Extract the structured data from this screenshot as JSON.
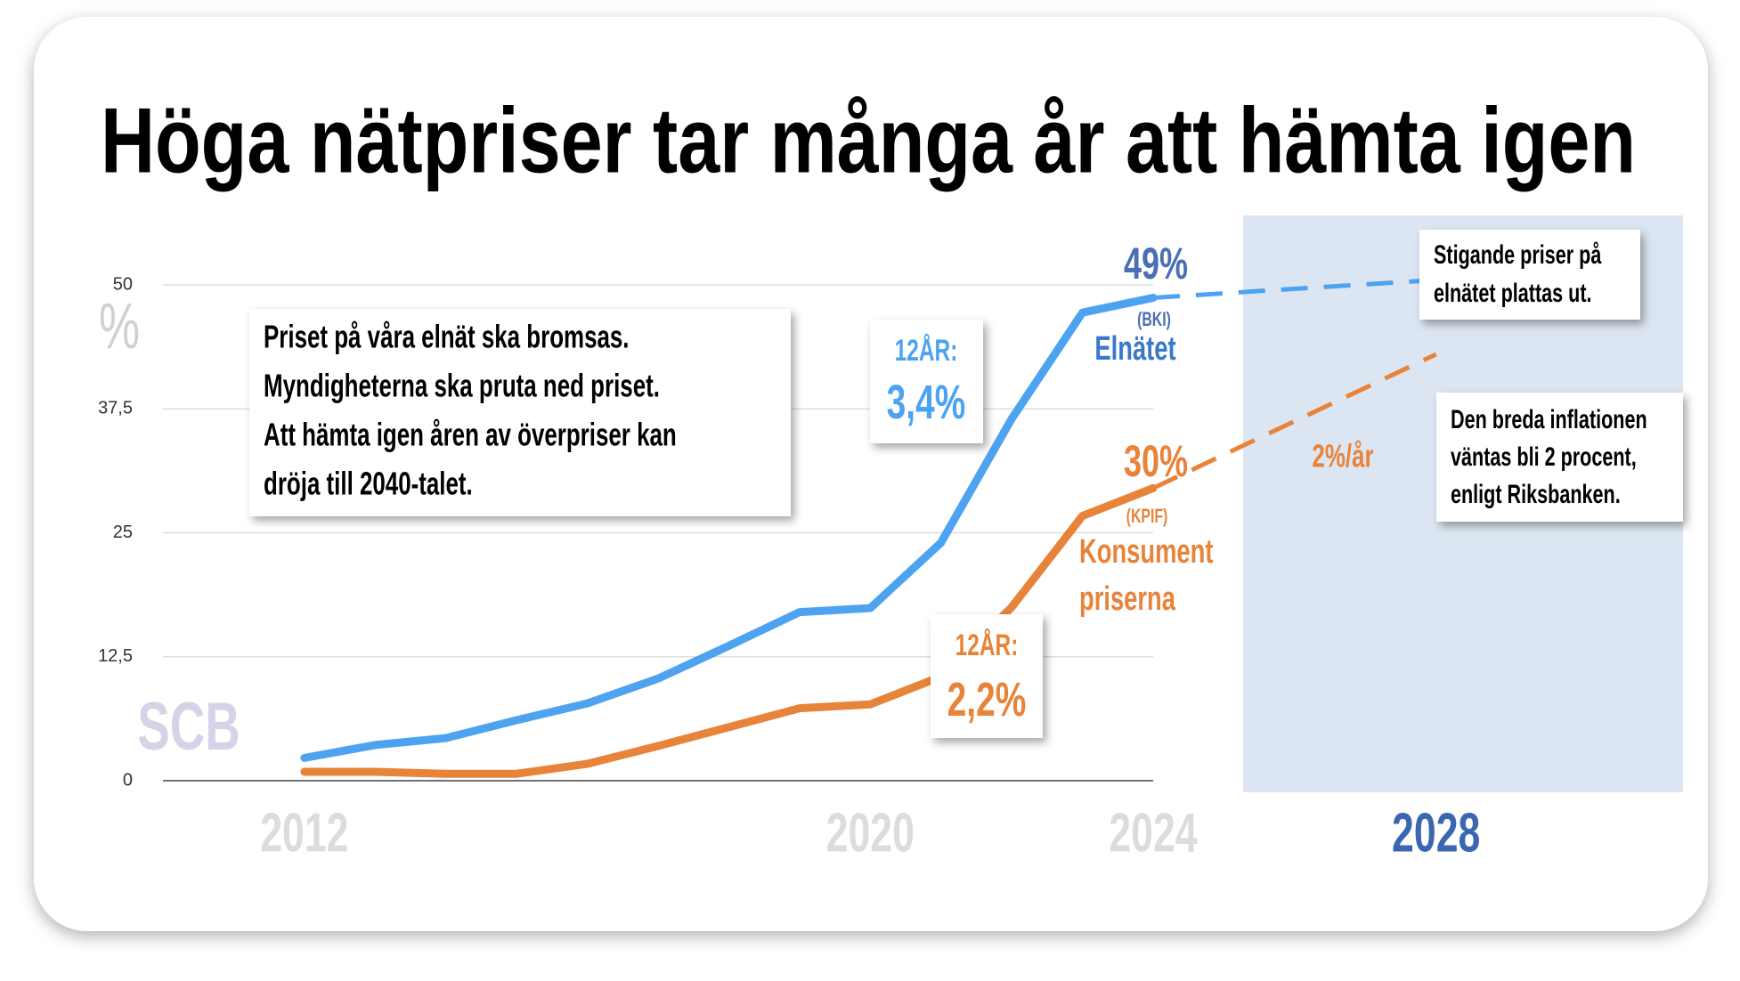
{
  "chart_data": {
    "type": "line",
    "title": "Höga nätpriser tar många år att hämta igen",
    "y_unit": "%",
    "watermark": "SCB",
    "x": [
      2012,
      2013,
      2014,
      2015,
      2016,
      2017,
      2018,
      2019,
      2020,
      2021,
      2022,
      2023,
      2024
    ],
    "xlim": [
      2010,
      2024
    ],
    "xticks": [
      2012,
      2020,
      2024,
      2028
    ],
    "xtick_colors": [
      "#dcdcdc",
      "#dcdcdc",
      "#dcdcdc",
      "#3b67b0"
    ],
    "ylim": [
      0,
      50
    ],
    "yticks": [
      0,
      {
        "value": 12.5,
        "label": "12,5"
      },
      25,
      {
        "value": 37.5,
        "label": "37,5"
      },
      50
    ],
    "grid": true,
    "series": [
      {
        "color": "#4da3f0",
        "values": [
          2.3,
          3.6,
          4.3,
          6.1,
          7.8,
          10.3,
          13.6,
          17.0,
          17.4,
          24.0,
          36.5,
          47.2,
          48.7
        ]
      },
      {
        "color": "#e8833a",
        "values": [
          0.9,
          0.9,
          0.7,
          0.7,
          1.7,
          3.5,
          5.4,
          7.3,
          7.7,
          10.5,
          17.5,
          26.7,
          29.5
        ]
      }
    ],
    "projections": [
      {
        "color": "#4da3f0",
        "x": [
          2024,
          2028
        ],
        "values": [
          48.7,
          50.5
        ]
      },
      {
        "color": "#e8833a",
        "x": [
          2024,
          2028
        ],
        "values": [
          29.5,
          43
        ]
      }
    ],
    "annotations": {
      "elnat": {
        "pct": "49%",
        "index": "(BKI)",
        "label": "Elnätet",
        "period": "12ÅR:",
        "rate": "3,4%"
      },
      "kpif": {
        "pct": "30%",
        "index": "(KPIF)",
        "label": [
          "Konsument",
          "priserna"
        ],
        "period": "12ÅR:",
        "rate": "2,2%"
      },
      "projection_rate": "2%/år",
      "main_note": [
        "Priset på våra elnät ska bromsas.",
        "Myndigheterna ska pruta ned priset.",
        "Att hämta igen åren av överpriser kan",
        "dröja till 2040-talet."
      ],
      "note_top": [
        "Stigande priser på",
        "elnätet plattas ut."
      ],
      "note_bottom": [
        "Den breda inflationen",
        "väntas bli 2 procent,",
        "enligt Riksbanken."
      ]
    }
  }
}
